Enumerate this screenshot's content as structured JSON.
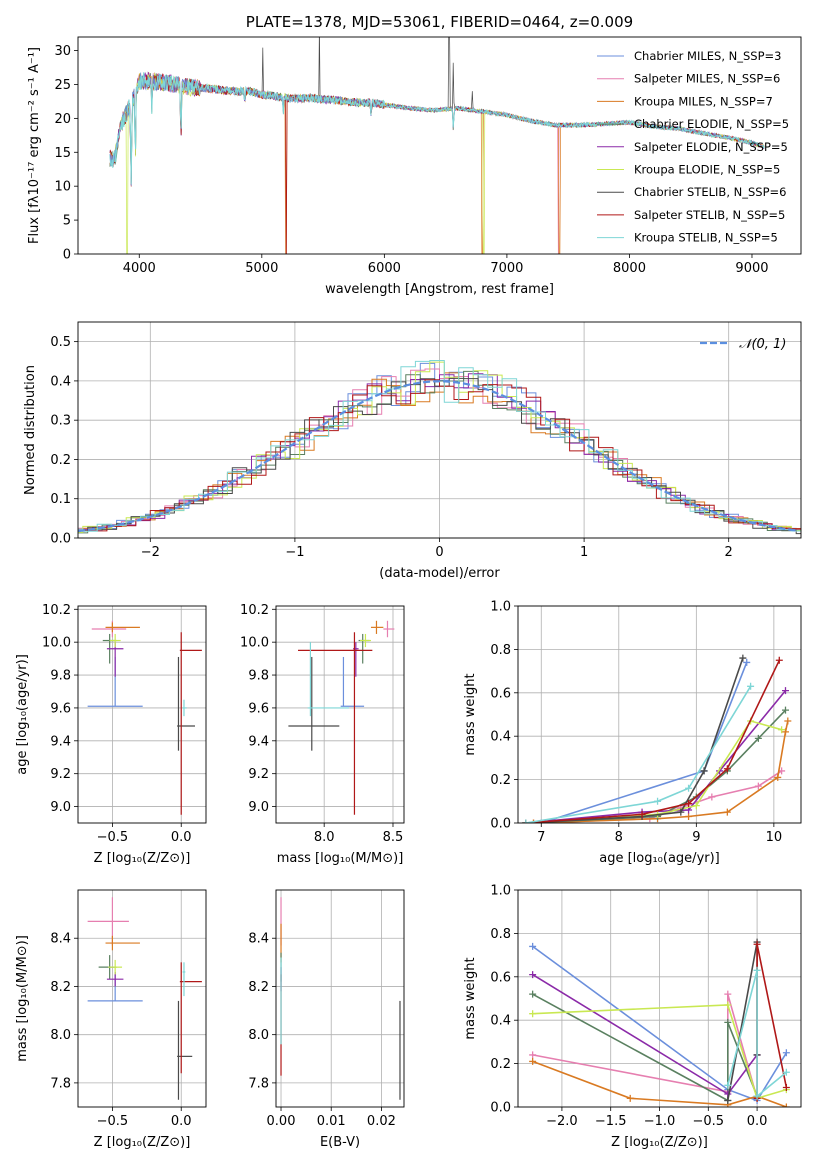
{
  "colors": {
    "chabrier_miles": "#6b8fdc",
    "salpeter_miles": "#e67fb0",
    "kroupa_miles": "#d97a22",
    "chabrier_elodie": "#5a8060",
    "salpeter_elodie": "#8b2aa8",
    "kroupa_elodie": "#c9e852",
    "chabrier_stelib": "#4a4a4a",
    "salpeter_stelib": "#b01818",
    "kroupa_stelib": "#7ed6d6",
    "normal": "#5b8fe0"
  },
  "chart_data": [
    {
      "id": "spectrum",
      "type": "line",
      "title": "PLATE=1378, MJD=53061, FIBERID=0464, z=0.009",
      "xlabel": "wavelength [Angstrom, rest frame]",
      "ylabel": "Flux [fλ10⁻¹⁷ erg cm⁻² s⁻¹ A⁻¹]",
      "xlim": [
        3500,
        9400
      ],
      "ylim": [
        0,
        32
      ],
      "xticks": [
        4000,
        5000,
        6000,
        7000,
        8000,
        9000
      ],
      "yticks": [
        0,
        5,
        10,
        15,
        20,
        25,
        30
      ],
      "grid": false,
      "legend_position": "top-right",
      "x": [
        3800,
        3850,
        3900,
        3950,
        4000,
        4100,
        4200,
        4300,
        4400,
        4500,
        4600,
        4700,
        4800,
        4900,
        5000,
        5100,
        5200,
        5300,
        5400,
        5500,
        5600,
        5700,
        5800,
        5900,
        6000,
        6200,
        6400,
        6600,
        6800,
        7000,
        7200,
        7400,
        7600,
        7800,
        8000,
        8200,
        8400,
        8600,
        8800,
        9000,
        9100
      ],
      "continuum": [
        14,
        19,
        21,
        23,
        25.5,
        25.5,
        25.3,
        25,
        24.6,
        24.5,
        24.3,
        24.1,
        24,
        24,
        23.5,
        23.3,
        23,
        22.9,
        23,
        22.8,
        22.7,
        22.5,
        22.3,
        22.3,
        22,
        21.5,
        21.2,
        21.5,
        21,
        20.5,
        19.6,
        19,
        19,
        19.2,
        19.4,
        18.8,
        18.5,
        17.8,
        17.2,
        16.4,
        15.8
      ],
      "series": [
        {
          "name": "Chabrier MILES, N_SSP=3",
          "color_key": "chabrier_miles"
        },
        {
          "name": "Salpeter MILES, N_SSP=6",
          "color_key": "salpeter_miles"
        },
        {
          "name": "Kroupa MILES, N_SSP=7",
          "color_key": "kroupa_miles"
        },
        {
          "name": "Chabrier ELODIE, N_SSP=5",
          "color_key": "chabrier_elodie"
        },
        {
          "name": "Salpeter ELODIE, N_SSP=5",
          "color_key": "salpeter_elodie"
        },
        {
          "name": "Kroupa ELODIE, N_SSP=5",
          "color_key": "kroupa_elodie"
        },
        {
          "name": "Chabrier STELIB, N_SSP=6",
          "color_key": "chabrier_stelib"
        },
        {
          "name": "Salpeter STELIB, N_SSP=5",
          "color_key": "salpeter_stelib"
        },
        {
          "name": "Kroupa STELIB, N_SSP=5",
          "color_key": "kroupa_stelib"
        }
      ]
    },
    {
      "id": "residuals",
      "type": "line",
      "xlabel": "(data-model)/error",
      "ylabel": "Normed distribution",
      "xlim": [
        -2.5,
        2.5
      ],
      "ylim": [
        0,
        0.55
      ],
      "xticks": [
        -2,
        -1,
        0,
        1,
        2
      ],
      "yticks": [
        0.0,
        0.1,
        0.2,
        0.3,
        0.4,
        0.5
      ],
      "grid": true,
      "legend_position": "top-right",
      "normal_label": "𝒩(0, 1)"
    },
    {
      "id": "age-vs-Z",
      "type": "scatter",
      "xlabel": "Z [log₁₀(Z/Z⊙)]",
      "ylabel": "age  [log₁₀(age/yr)]",
      "xlim": [
        -0.75,
        0.18
      ],
      "ylim": [
        8.9,
        10.22
      ],
      "xticks": [
        -0.5,
        0.0
      ],
      "yticks": [
        9.0,
        9.2,
        9.4,
        9.6,
        9.8,
        10.0,
        10.2
      ],
      "grid": true,
      "points": [
        {
          "color_key": "chabrier_miles",
          "x": -0.48,
          "y": 9.61,
          "xerr": [
            0.2,
            0.2
          ],
          "yerr": [
            0.0,
            0.3
          ]
        },
        {
          "color_key": "salpeter_miles",
          "x": -0.5,
          "y": 10.08,
          "xerr": [
            0.15,
            0.1
          ],
          "yerr": [
            0.05,
            0.05
          ]
        },
        {
          "color_key": "kroupa_miles",
          "x": -0.5,
          "y": 10.09,
          "xerr": [
            0.05,
            0.2
          ],
          "yerr": [
            0.03,
            0.03
          ]
        },
        {
          "color_key": "chabrier_elodie",
          "x": -0.52,
          "y": 10.01,
          "xerr": [
            0.05,
            0.05
          ],
          "yerr": [
            0.14,
            0.04
          ]
        },
        {
          "color_key": "salpeter_elodie",
          "x": -0.48,
          "y": 9.96,
          "xerr": [
            0.06,
            0.06
          ],
          "yerr": [
            0.17,
            0.04
          ]
        },
        {
          "color_key": "kroupa_elodie",
          "x": -0.48,
          "y": 10.01,
          "xerr": [
            0.04,
            0.04
          ],
          "yerr": [
            0.04,
            0.04
          ]
        },
        {
          "color_key": "chabrier_stelib",
          "x": -0.02,
          "y": 9.49,
          "xerr": [
            0.01,
            0.12
          ],
          "yerr": [
            0.15,
            0.42
          ]
        },
        {
          "color_key": "salpeter_stelib",
          "x": 0.0,
          "y": 9.95,
          "xerr": [
            0.01,
            0.15
          ],
          "yerr": [
            1.0,
            0.11
          ]
        },
        {
          "color_key": "kroupa_stelib",
          "x": 0.02,
          "y": 9.6,
          "xerr": [
            0.01,
            0.02
          ],
          "yerr": [
            0.05,
            0.05
          ]
        }
      ]
    },
    {
      "id": "age-vs-mass",
      "type": "scatter",
      "xlabel": "mass [log₁₀(M/M⊙)]",
      "ylabel": "",
      "xlim": [
        7.65,
        8.58
      ],
      "ylim": [
        8.9,
        10.22
      ],
      "xticks": [
        8.0,
        8.5
      ],
      "yticks": [
        9.0,
        9.2,
        9.4,
        9.6,
        9.8,
        10.0,
        10.2
      ],
      "grid": true,
      "points": [
        {
          "color_key": "chabrier_miles",
          "x": 8.14,
          "y": 9.61,
          "xerr": [
            0.02,
            0.15
          ],
          "yerr": [
            0.0,
            0.3
          ]
        },
        {
          "color_key": "salpeter_miles",
          "x": 8.46,
          "y": 10.08,
          "xerr": [
            0.03,
            0.05
          ],
          "yerr": [
            0.05,
            0.05
          ]
        },
        {
          "color_key": "kroupa_miles",
          "x": 8.38,
          "y": 10.09,
          "xerr": [
            0.04,
            0.05
          ],
          "yerr": [
            0.04,
            0.04
          ]
        },
        {
          "color_key": "chabrier_elodie",
          "x": 8.28,
          "y": 10.01,
          "xerr": [
            0.03,
            0.05
          ],
          "yerr": [
            0.14,
            0.04
          ]
        },
        {
          "color_key": "salpeter_elodie",
          "x": 8.23,
          "y": 9.96,
          "xerr": [
            0.02,
            0.02
          ],
          "yerr": [
            0.17,
            0.04
          ]
        },
        {
          "color_key": "kroupa_elodie",
          "x": 8.3,
          "y": 10.01,
          "xerr": [
            0.04,
            0.04
          ],
          "yerr": [
            0.04,
            0.04
          ]
        },
        {
          "color_key": "chabrier_stelib",
          "x": 7.91,
          "y": 9.49,
          "xerr": [
            0.17,
            0.2
          ],
          "yerr": [
            0.15,
            0.42
          ]
        },
        {
          "color_key": "salpeter_stelib",
          "x": 8.22,
          "y": 9.95,
          "xerr": [
            0.41,
            0.13
          ],
          "yerr": [
            1.0,
            0.11
          ]
        },
        {
          "color_key": "kroupa_stelib",
          "x": 7.9,
          "y": 9.6,
          "xerr": [
            0.02,
            0.28
          ],
          "yerr": [
            0.05,
            0.4
          ]
        }
      ]
    },
    {
      "id": "massweight-vs-age",
      "type": "line",
      "xlabel": "age  [log₁₀(age/yr)]",
      "ylabel": "mass weight",
      "xlim": [
        6.7,
        10.35
      ],
      "ylim": [
        0.0,
        1.0
      ],
      "xticks": [
        7,
        8,
        9,
        10
      ],
      "yticks": [
        0.0,
        0.2,
        0.4,
        0.6,
        0.8,
        1.0
      ],
      "grid": true,
      "series": [
        {
          "color_key": "chabrier_miles",
          "x": [
            7.0,
            9.1,
            9.65
          ],
          "y": [
            0.0,
            0.24,
            0.74
          ]
        },
        {
          "color_key": "salpeter_miles",
          "x": [
            6.9,
            8.4,
            8.8,
            9.2,
            9.8,
            10.1
          ],
          "y": [
            0.0,
            0.02,
            0.07,
            0.12,
            0.17,
            0.24
          ]
        },
        {
          "color_key": "kroupa_miles",
          "x": [
            6.9,
            8.5,
            8.9,
            9.4,
            10.05,
            10.15,
            10.18
          ],
          "y": [
            0.0,
            0.02,
            0.03,
            0.05,
            0.21,
            0.42,
            0.47
          ]
        },
        {
          "color_key": "chabrier_elodie",
          "x": [
            6.8,
            8.5,
            9.0,
            9.4,
            9.8,
            10.15
          ],
          "y": [
            0.0,
            0.03,
            0.12,
            0.24,
            0.39,
            0.52
          ]
        },
        {
          "color_key": "salpeter_elodie",
          "x": [
            6.8,
            8.3,
            8.9,
            9.3,
            10.15
          ],
          "y": [
            0.0,
            0.05,
            0.06,
            0.24,
            0.61
          ]
        },
        {
          "color_key": "kroupa_elodie",
          "x": [
            6.8,
            8.5,
            9.0,
            9.7,
            10.1
          ],
          "y": [
            0.0,
            0.04,
            0.08,
            0.47,
            0.43
          ]
        },
        {
          "color_key": "chabrier_stelib",
          "x": [
            6.8,
            8.3,
            8.8,
            9.1,
            9.6
          ],
          "y": [
            0.0,
            0.03,
            0.05,
            0.24,
            0.76
          ]
        },
        {
          "color_key": "salpeter_stelib",
          "x": [
            6.8,
            8.3,
            8.9,
            9.4,
            10.07
          ],
          "y": [
            0.0,
            0.04,
            0.09,
            0.25,
            0.75
          ]
        },
        {
          "color_key": "kroupa_stelib",
          "x": [
            6.8,
            8.5,
            8.9,
            9.7
          ],
          "y": [
            0.0,
            0.1,
            0.16,
            0.63
          ]
        }
      ]
    },
    {
      "id": "mass-vs-Z",
      "type": "scatter",
      "xlabel": "Z [log₁₀(Z/Z⊙)]",
      "ylabel": "mass [log₁₀(M/M⊙)]",
      "xlim": [
        -0.75,
        0.18
      ],
      "ylim": [
        7.7,
        8.6
      ],
      "xticks": [
        -0.5,
        0.0
      ],
      "yticks": [
        7.8,
        8.0,
        8.2,
        8.4
      ],
      "grid": true,
      "points": [
        {
          "color_key": "chabrier_miles",
          "x": -0.48,
          "y": 8.14,
          "xerr": [
            0.2,
            0.2
          ],
          "yerr": [
            0.0,
            0.12
          ]
        },
        {
          "color_key": "salpeter_miles",
          "x": -0.5,
          "y": 8.47,
          "xerr": [
            0.18,
            0.12
          ],
          "yerr": [
            0.1,
            0.1
          ]
        },
        {
          "color_key": "kroupa_miles",
          "x": -0.5,
          "y": 8.38,
          "xerr": [
            0.05,
            0.2
          ],
          "yerr": [
            0.03,
            0.03
          ]
        },
        {
          "color_key": "chabrier_elodie",
          "x": -0.52,
          "y": 8.28,
          "xerr": [
            0.08,
            0.05
          ],
          "yerr": [
            0.05,
            0.05
          ]
        },
        {
          "color_key": "salpeter_elodie",
          "x": -0.48,
          "y": 8.23,
          "xerr": [
            0.06,
            0.06
          ],
          "yerr": [
            0.03,
            0.03
          ]
        },
        {
          "color_key": "kroupa_elodie",
          "x": -0.48,
          "y": 8.28,
          "xerr": [
            0.05,
            0.05
          ],
          "yerr": [
            0.03,
            0.03
          ]
        },
        {
          "color_key": "chabrier_stelib",
          "x": -0.02,
          "y": 7.91,
          "xerr": [
            0.01,
            0.1
          ],
          "yerr": [
            0.18,
            0.23
          ]
        },
        {
          "color_key": "salpeter_stelib",
          "x": 0.0,
          "y": 8.22,
          "xerr": [
            0.01,
            0.15
          ],
          "yerr": [
            0.38,
            0.08
          ]
        },
        {
          "color_key": "kroupa_stelib",
          "x": 0.02,
          "y": 8.26,
          "xerr": [
            0.01,
            0.01
          ],
          "yerr": [
            0.1,
            0.04
          ]
        }
      ]
    },
    {
      "id": "mass-vs-EBV",
      "type": "scatter",
      "xlabel": "E(B-V)",
      "ylabel": "",
      "xlim": [
        -0.001,
        0.0245
      ],
      "ylim": [
        7.7,
        8.6
      ],
      "xticks": [
        0.0,
        0.01,
        0.02
      ],
      "yticks": [
        7.8,
        8.0,
        8.2,
        8.4
      ],
      "grid": true,
      "points": [
        {
          "color_key": "salpeter_miles",
          "x": 0.0,
          "y": 8.47,
          "xerr": [
            0.0,
            0.0
          ],
          "yerr": [
            0.1,
            0.1
          ]
        },
        {
          "color_key": "kroupa_miles",
          "x": 0.0,
          "y": 8.38,
          "xerr": [
            0.0,
            0.0
          ],
          "yerr": [
            0.08,
            0.08
          ]
        },
        {
          "color_key": "chabrier_elodie",
          "x": 0.0,
          "y": 8.28,
          "xerr": [
            0.0,
            0.0
          ],
          "yerr": [
            0.06,
            0.06
          ]
        },
        {
          "color_key": "salpeter_elodie",
          "x": 0.0,
          "y": 8.23,
          "xerr": [
            0.0,
            0.0
          ],
          "yerr": [
            0.05,
            0.05
          ]
        },
        {
          "color_key": "salpeter_stelib",
          "x": 0.0,
          "y": 8.15,
          "xerr": [
            0.0,
            0.0
          ],
          "yerr": [
            0.32,
            0.1
          ]
        },
        {
          "color_key": "kroupa_stelib",
          "x": 0.0,
          "y": 8.26,
          "xerr": [
            0.0,
            0.0
          ],
          "yerr": [
            0.3,
            0.06
          ]
        },
        {
          "color_key": "chabrier_stelib",
          "x": 0.0237,
          "y": 7.95,
          "xerr": [
            0.0,
            0.0
          ],
          "yerr": [
            0.22,
            0.19
          ]
        }
      ]
    },
    {
      "id": "massweight-vs-Z",
      "type": "line",
      "xlabel": "Z [log₁₀(Z/Z⊙)]",
      "ylabel": "mass weight",
      "xlim": [
        -2.45,
        0.45
      ],
      "ylim": [
        0.0,
        1.0
      ],
      "xticks": [
        -2.0,
        -1.5,
        -1.0,
        -0.5,
        0.0
      ],
      "yticks": [
        0.0,
        0.2,
        0.4,
        0.6,
        0.8,
        1.0
      ],
      "grid": true,
      "series": [
        {
          "color_key": "chabrier_miles",
          "x": [
            -2.3,
            -0.3,
            0.0,
            0.3
          ],
          "y": [
            0.74,
            0.08,
            0.03,
            0.25
          ]
        },
        {
          "color_key": "salpeter_miles",
          "x": [
            -2.3,
            -0.3,
            -0.3,
            0.0
          ],
          "y": [
            0.24,
            0.07,
            0.52,
            0.04
          ]
        },
        {
          "color_key": "kroupa_miles",
          "x": [
            -2.3,
            -1.3,
            -0.3,
            0.0,
            0.3
          ],
          "y": [
            0.21,
            0.04,
            0.01,
            0.05,
            0.0
          ]
        },
        {
          "color_key": "chabrier_elodie",
          "x": [
            -2.3,
            -0.3,
            -0.3,
            0.0
          ],
          "y": [
            0.52,
            0.03,
            0.39,
            0.05
          ]
        },
        {
          "color_key": "salpeter_elodie",
          "x": [
            -2.3,
            -0.3,
            0.0
          ],
          "y": [
            0.61,
            0.06,
            0.24
          ]
        },
        {
          "color_key": "kroupa_elodie",
          "x": [
            -2.3,
            -0.3,
            0.0,
            0.3
          ],
          "y": [
            0.43,
            0.47,
            0.04,
            0.08
          ]
        },
        {
          "color_key": "chabrier_stelib",
          "x": [
            -0.3,
            0.0,
            0.0
          ],
          "y": [
            0.03,
            0.76,
            0.24
          ]
        },
        {
          "color_key": "salpeter_stelib",
          "x": [
            0.0,
            0.0,
            0.3
          ],
          "y": [
            0.04,
            0.75,
            0.09
          ]
        },
        {
          "color_key": "kroupa_stelib",
          "x": [
            -0.3,
            0.0,
            0.0,
            0.3
          ],
          "y": [
            0.1,
            0.63,
            0.05,
            0.16
          ]
        }
      ]
    }
  ]
}
